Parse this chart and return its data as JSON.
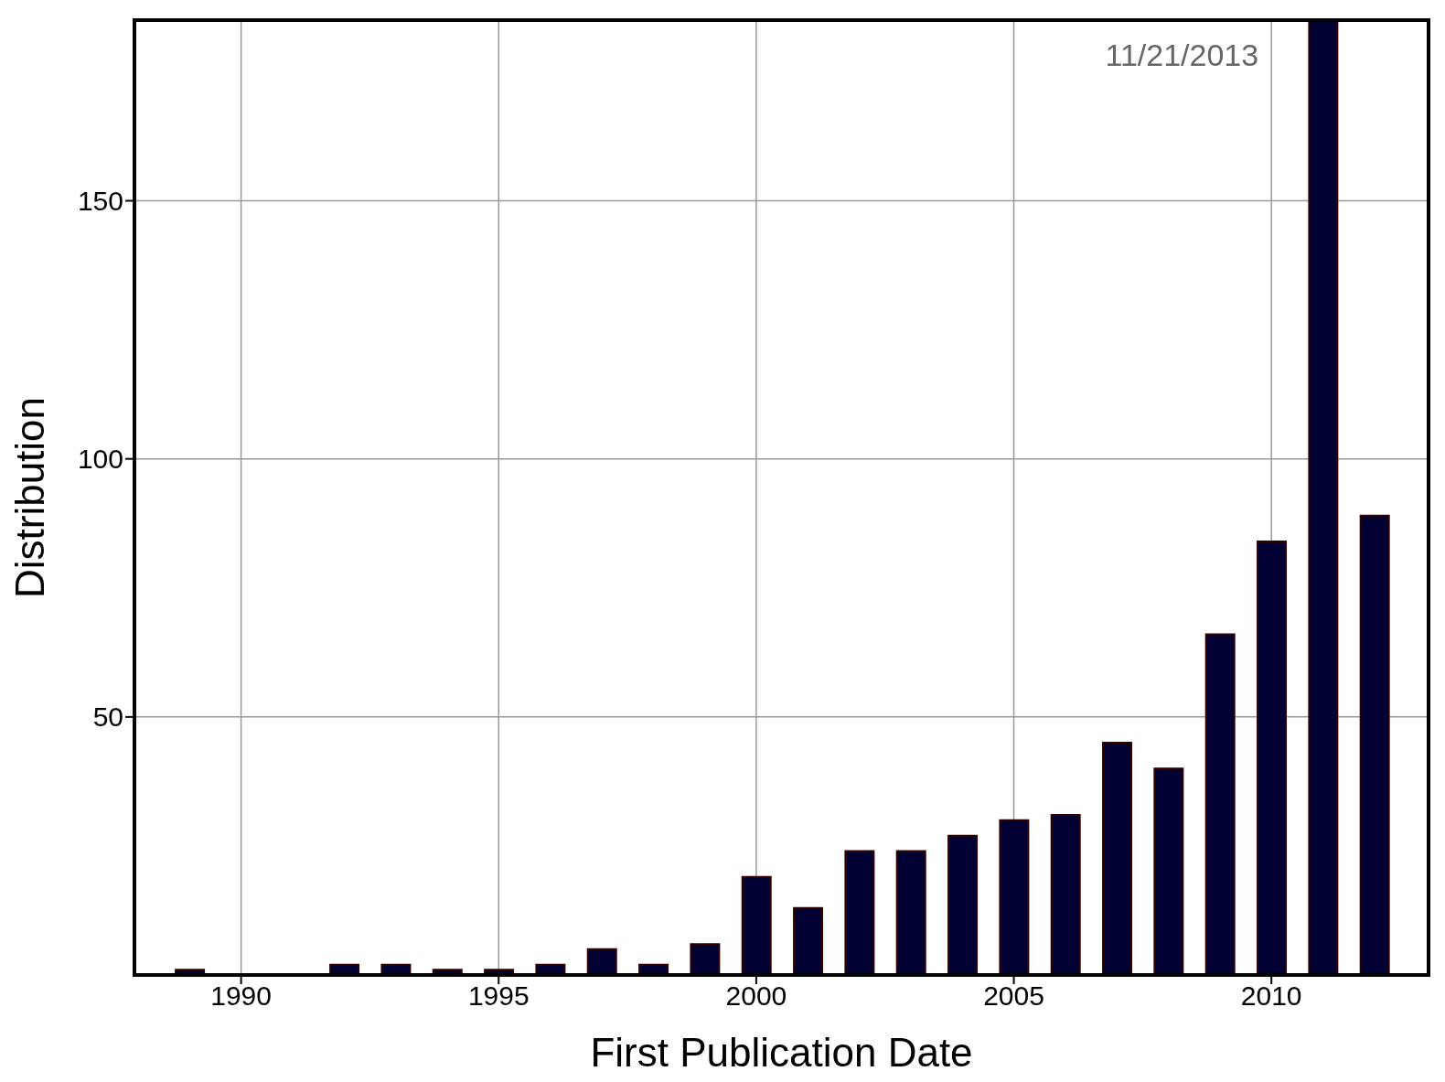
{
  "chart_data": {
    "type": "bar",
    "xlabel": "First Publication Date",
    "ylabel": "Distribution",
    "x": [
      1989,
      1992,
      1993,
      1994,
      1995,
      1996,
      1997,
      1998,
      1999,
      2000,
      2001,
      2002,
      2003,
      2004,
      2005,
      2006,
      2007,
      2008,
      2009,
      2010,
      2011,
      2012
    ],
    "values": [
      1,
      2,
      2,
      1,
      1,
      2,
      5,
      2,
      6,
      19,
      13,
      24,
      24,
      27,
      30,
      31,
      45,
      40,
      66,
      84,
      185,
      89
    ],
    "color": "#000033",
    "xlim": [
      1987.93,
      2013.05
    ],
    "xticks": [
      1990,
      1995,
      2000,
      2005,
      2010
    ],
    "ylim": [
      0,
      185
    ],
    "yticks": [
      50,
      100,
      150
    ],
    "grid": true,
    "annotations": [
      "11/21/2013"
    ]
  }
}
